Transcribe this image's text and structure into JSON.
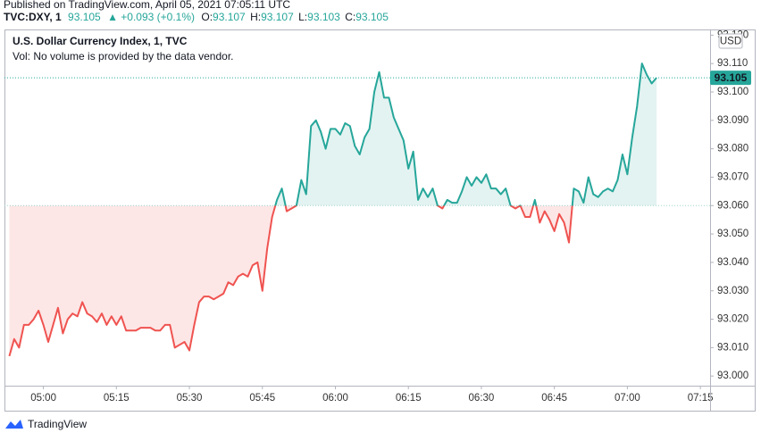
{
  "header": {
    "published": "Published on TradingView.com, April 05, 2021 07:05:11 UTC",
    "symbol": "TVC:DXY, 1",
    "price": "93.105",
    "change": "▲ +0.093 (+0.1%)",
    "ohlc": [
      {
        "label": "O:",
        "value": "93.107"
      },
      {
        "label": "H:",
        "value": "93.107"
      },
      {
        "label": "L:",
        "value": "93.103"
      },
      {
        "label": "C:",
        "value": "93.105"
      }
    ]
  },
  "footer": {
    "brand": "TradingView"
  },
  "chart_data": {
    "type": "baseline",
    "title": "U.S. Dollar Currency Index, 1, TVC",
    "subtitle": "Vol: No volume is provided by the data vendor.",
    "currency": "USD",
    "baseline": 93.06,
    "color_up": "#26a69a",
    "color_down": "#ef5350",
    "fill_up": "#e3f3f1",
    "fill_down": "#fde6e6",
    "grid": false,
    "xlim": [
      "04:52",
      "07:17"
    ],
    "xticks": [
      "05:00",
      "05:15",
      "05:30",
      "05:45",
      "06:00",
      "06:15",
      "06:30",
      "06:45",
      "07:00",
      "07:15"
    ],
    "ylim": [
      92.9966,
      93.122
    ],
    "yticks": [
      {
        "value": 93.0,
        "label": "93.000"
      },
      {
        "value": 93.01,
        "label": "93.010"
      },
      {
        "value": 93.02,
        "label": "93.020"
      },
      {
        "value": 93.03,
        "label": "93.030"
      },
      {
        "value": 93.04,
        "label": "93.040"
      },
      {
        "value": 93.05,
        "label": "93.050"
      },
      {
        "value": 93.06,
        "label": "93.060"
      },
      {
        "value": 93.07,
        "label": "93.070"
      },
      {
        "value": 93.08,
        "label": "93.080"
      },
      {
        "value": 93.09,
        "label": "93.090"
      },
      {
        "value": 93.1,
        "label": "93.100"
      },
      {
        "value": 93.11,
        "label": "93.110"
      },
      {
        "value": 93.12,
        "label": "93.120"
      }
    ],
    "x": [
      "04:53",
      "04:54",
      "04:55",
      "04:56",
      "04:57",
      "04:58",
      "04:59",
      "05:00",
      "05:01",
      "05:02",
      "05:03",
      "05:04",
      "05:05",
      "05:06",
      "05:07",
      "05:08",
      "05:09",
      "05:10",
      "05:11",
      "05:12",
      "05:13",
      "05:14",
      "05:15",
      "05:16",
      "05:17",
      "05:18",
      "05:19",
      "05:20",
      "05:21",
      "05:22",
      "05:23",
      "05:24",
      "05:25",
      "05:26",
      "05:27",
      "05:28",
      "05:29",
      "05:30",
      "05:31",
      "05:32",
      "05:33",
      "05:34",
      "05:35",
      "05:36",
      "05:37",
      "05:38",
      "05:39",
      "05:40",
      "05:41",
      "05:42",
      "05:43",
      "05:44",
      "05:45",
      "05:46",
      "05:47",
      "05:48",
      "05:49",
      "05:50",
      "05:51",
      "05:52",
      "05:53",
      "05:54",
      "05:55",
      "05:56",
      "05:57",
      "05:58",
      "05:59",
      "06:00",
      "06:01",
      "06:02",
      "06:03",
      "06:04",
      "06:05",
      "06:06",
      "06:07",
      "06:08",
      "06:09",
      "06:10",
      "06:11",
      "06:12",
      "06:13",
      "06:14",
      "06:15",
      "06:16",
      "06:17",
      "06:18",
      "06:19",
      "06:20",
      "06:21",
      "06:22",
      "06:23",
      "06:24",
      "06:25",
      "06:26",
      "06:27",
      "06:28",
      "06:29",
      "06:30",
      "06:31",
      "06:32",
      "06:33",
      "06:34",
      "06:35",
      "06:36",
      "06:37",
      "06:38",
      "06:39",
      "06:40",
      "06:41",
      "06:42",
      "06:43",
      "06:44",
      "06:45",
      "06:46",
      "06:47",
      "06:48",
      "06:49",
      "06:50",
      "06:51",
      "06:52",
      "06:53",
      "06:54",
      "06:55",
      "06:56",
      "06:57",
      "06:58",
      "06:59",
      "07:00",
      "07:01",
      "07:02",
      "07:03",
      "07:04",
      "07:05",
      "07:06"
    ],
    "values": [
      93.007,
      93.013,
      93.01,
      93.018,
      93.018,
      93.02,
      93.023,
      93.018,
      93.012,
      93.018,
      93.024,
      93.015,
      93.02,
      93.022,
      93.021,
      93.026,
      93.022,
      93.021,
      93.019,
      93.022,
      93.018,
      93.021,
      93.018,
      93.021,
      93.016,
      93.016,
      93.016,
      93.017,
      93.017,
      93.017,
      93.016,
      93.016,
      93.018,
      93.018,
      93.01,
      93.011,
      93.012,
      93.009,
      93.018,
      93.026,
      93.028,
      93.028,
      93.027,
      93.028,
      93.029,
      93.033,
      93.032,
      93.035,
      93.036,
      93.035,
      93.039,
      93.04,
      93.03,
      93.045,
      93.056,
      93.062,
      93.066,
      93.058,
      93.059,
      93.06,
      93.069,
      93.064,
      93.088,
      93.09,
      93.086,
      93.08,
      93.087,
      93.087,
      93.085,
      93.089,
      93.088,
      93.081,
      93.078,
      93.084,
      93.087,
      93.1,
      93.107,
      93.098,
      93.098,
      93.091,
      93.087,
      93.083,
      93.073,
      93.079,
      93.062,
      93.066,
      93.063,
      93.066,
      93.06,
      93.059,
      93.062,
      93.061,
      93.061,
      93.065,
      93.07,
      93.067,
      93.07,
      93.068,
      93.071,
      93.066,
      93.066,
      93.064,
      93.066,
      93.06,
      93.059,
      93.06,
      93.056,
      93.056,
      93.062,
      93.054,
      93.058,
      93.055,
      93.051,
      93.057,
      93.054,
      93.047,
      93.066,
      93.065,
      93.061,
      93.07,
      93.064,
      93.063,
      93.065,
      93.066,
      93.065,
      93.069,
      93.078,
      93.071,
      93.084,
      93.095,
      93.11,
      93.106,
      93.103,
      93.105
    ]
  }
}
